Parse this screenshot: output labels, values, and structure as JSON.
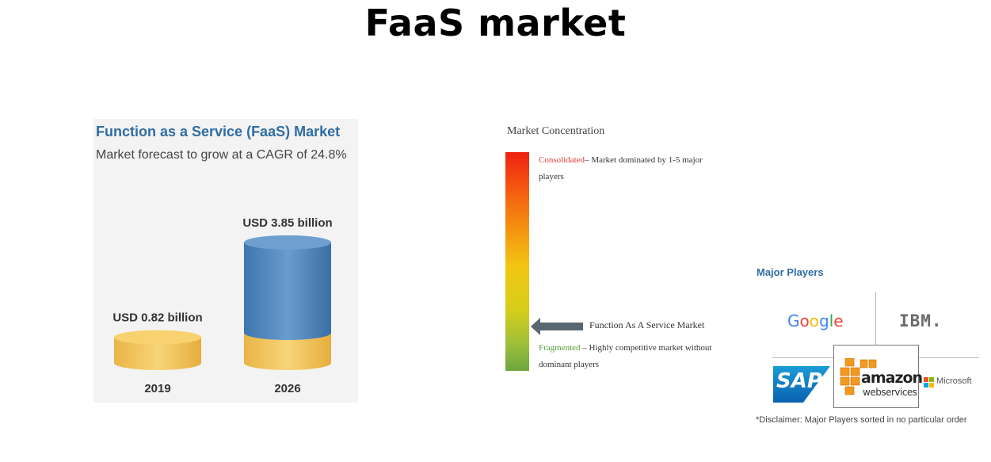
{
  "page": {
    "title": "FaaS market"
  },
  "forecast": {
    "title": "Function as a Service (FaaS) Market",
    "subtitle": "Market forecast to grow at a CAGR of 24.8%"
  },
  "chart_data": {
    "type": "bar",
    "style": "3d-cylinder",
    "categories": [
      "2019",
      "2026"
    ],
    "values": [
      0.82,
      3.85
    ],
    "value_labels": [
      "USD 0.82 billion",
      "USD 3.85 billion"
    ],
    "unit": "USD billion",
    "title": "Function as a Service (FaaS) Market",
    "subtitle": "Market forecast to grow at a CAGR of 24.8%",
    "grid": false,
    "colors": {
      "base": "#f2c85c",
      "top_segment": "#4f86bd"
    }
  },
  "concentration": {
    "title": "Market Concentration",
    "consolidated_label": "Consolidated",
    "consolidated_desc_line1": "– Market dominated by 1-5 major",
    "consolidated_desc_line2": "players",
    "market_label": "Function As A Service Market",
    "market_level": 0.78,
    "fragmented_label": "Fragmented",
    "fragmented_desc_line1": " – Highly competitive market without",
    "fragmented_desc_line2": "dominant players",
    "colors": {
      "top": "#f02010",
      "middle": "#f3c512",
      "bottom": "#6ea640"
    }
  },
  "players": {
    "title": "Major Players",
    "google_letters": [
      {
        "char": "G",
        "color": "#4285f4"
      },
      {
        "char": "o",
        "color": "#ea4335"
      },
      {
        "char": "o",
        "color": "#fbbc05"
      },
      {
        "char": "g",
        "color": "#4285f4"
      },
      {
        "char": "l",
        "color": "#34a853"
      },
      {
        "char": "e",
        "color": "#ea4335"
      }
    ],
    "ibm": "IBM.",
    "sap": "SAP",
    "amazon": "amazon",
    "amazon_sub": "webservices",
    "microsoft": "Microsoft",
    "disclaimer": "*Disclaimer: Major Players sorted in no particular order"
  }
}
